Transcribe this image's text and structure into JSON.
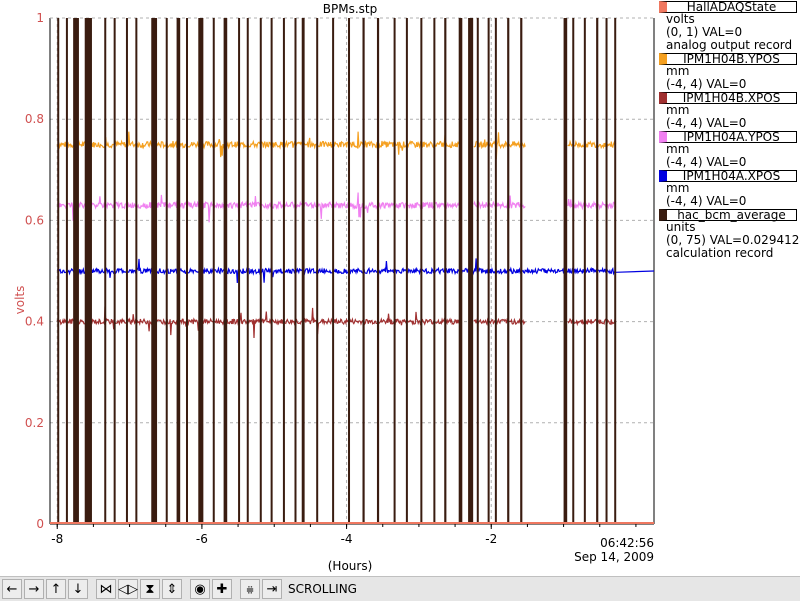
{
  "window_title": "BPMs.stp",
  "chart_data": {
    "type": "line",
    "title": "BPMs.stp",
    "xlabel": "(Hours)",
    "ylabel": "volts",
    "xlim": [
      -8.1,
      0.25
    ],
    "ylim": [
      0,
      1
    ],
    "x_ticks": [
      -8,
      -6,
      -4,
      -2
    ],
    "x_tick_labels": [
      "-8",
      "-6",
      "-4",
      "-2"
    ],
    "y_ticks": [
      0,
      0.2,
      0.4,
      0.6,
      0.8,
      1
    ],
    "y_tick_labels": [
      "0",
      "0.2",
      "0.4",
      "0.6",
      "0.8",
      "1"
    ],
    "grid": true,
    "end_time": "06:42:56",
    "end_date": "Sep 14, 2009",
    "legend_position": "right",
    "gaps": [
      [
        -2.45,
        -2.25
      ],
      [
        -1.53,
        -0.95
      ]
    ],
    "state_pulses": [
      [
        -8.0,
        -7.98
      ],
      [
        -7.88,
        -7.86
      ],
      [
        -7.78,
        -7.7
      ],
      [
        -7.62,
        -7.52
      ],
      [
        -7.35,
        -7.33
      ],
      [
        -7.22,
        -7.2
      ],
      [
        -7.05,
        -7.03
      ],
      [
        -6.92,
        -6.9
      ],
      [
        -6.7,
        -6.62
      ],
      [
        -6.5,
        -6.48
      ],
      [
        -6.35,
        -6.3
      ],
      [
        -6.22,
        -6.2
      ],
      [
        -6.05,
        -5.98
      ],
      [
        -5.85,
        -5.83
      ],
      [
        -5.7,
        -5.65
      ],
      [
        -5.5,
        -5.48
      ],
      [
        -5.38,
        -5.36
      ],
      [
        -5.2,
        -5.18
      ],
      [
        -5.05,
        -5.03
      ],
      [
        -4.88,
        -4.86
      ],
      [
        -4.72,
        -4.7
      ],
      [
        -4.62,
        -4.58
      ],
      [
        -4.42,
        -4.4
      ],
      [
        -4.2,
        -4.18
      ],
      [
        -3.98,
        -3.96
      ],
      [
        -3.78,
        -3.75
      ],
      [
        -3.58,
        -3.55
      ],
      [
        -3.35,
        -3.33
      ],
      [
        -3.18,
        -3.16
      ],
      [
        -2.98,
        -2.96
      ],
      [
        -2.8,
        -2.78
      ],
      [
        -2.65,
        -2.62
      ],
      [
        -2.45,
        -2.4
      ],
      [
        -2.32,
        -2.25
      ],
      [
        -2.2,
        -2.18
      ],
      [
        -2.05,
        -2.03
      ],
      [
        -1.95,
        -1.93
      ],
      [
        -1.78,
        -1.75
      ],
      [
        -1.6,
        -1.57
      ],
      [
        -1.0,
        -0.95
      ],
      [
        -0.88,
        -0.86
      ],
      [
        -0.72,
        -0.7
      ],
      [
        -0.55,
        -0.52
      ],
      [
        -0.42,
        -0.4
      ],
      [
        -0.3,
        -0.28
      ]
    ],
    "series": [
      {
        "name": "HallADAQState",
        "color": "#f07860",
        "units": "volts",
        "range": "(0, 1)",
        "value": "VAL=0",
        "desc": "analog output record",
        "level": 0.002,
        "noise": 0
      },
      {
        "name": "IPM1H04B.YPOS",
        "color": "#f5a020",
        "units": "mm",
        "range": "(-4, 4)",
        "value": "VAL=0",
        "desc": "",
        "level": 0.75,
        "noise": 0.006
      },
      {
        "name": "IPM1H04B.XPOS",
        "color": "#a03030",
        "units": "mm",
        "range": "(-4, 4)",
        "value": "VAL=0",
        "desc": "",
        "level": 0.4,
        "noise": 0.005
      },
      {
        "name": "IPM1H04A.YPOS",
        "color": "#f080f0",
        "units": "mm",
        "range": "(-4, 4)",
        "value": "VAL=0",
        "desc": "",
        "level": 0.63,
        "noise": 0.006
      },
      {
        "name": "IPM1H04A.XPOS",
        "color": "#0000e0",
        "units": "mm",
        "range": "(-4, 4)",
        "value": "VAL=0",
        "desc": "",
        "level": 0.5,
        "noise": 0.005
      },
      {
        "name": "hac_bcm_average",
        "color": "#3a1c10",
        "units": "units",
        "range": "(0, 75)",
        "value": "VAL=0.0294124",
        "desc": "calculation record",
        "level": 0,
        "noise": 0
      }
    ]
  },
  "toolbar": {
    "buttons": [
      {
        "name": "pan-left-button",
        "glyph": "←"
      },
      {
        "name": "pan-right-button",
        "glyph": "→"
      },
      {
        "name": "pan-up-button",
        "glyph": "↑"
      },
      {
        "name": "pan-down-button",
        "glyph": "↓"
      },
      {
        "name": "zoom-in-x-button",
        "glyph": "⋈"
      },
      {
        "name": "zoom-out-x-button",
        "glyph": "◁▷"
      },
      {
        "name": "zoom-in-y-button",
        "glyph": "⧗"
      },
      {
        "name": "zoom-out-y-button",
        "glyph": "⇕"
      },
      {
        "name": "autoscale-button",
        "glyph": "◉"
      },
      {
        "name": "reset-button",
        "glyph": "✚"
      },
      {
        "name": "toggle-scroll-button",
        "glyph": "⩷"
      },
      {
        "name": "scroll-right-button",
        "glyph": "⇥"
      }
    ],
    "mode_label": "SCROLLING"
  }
}
